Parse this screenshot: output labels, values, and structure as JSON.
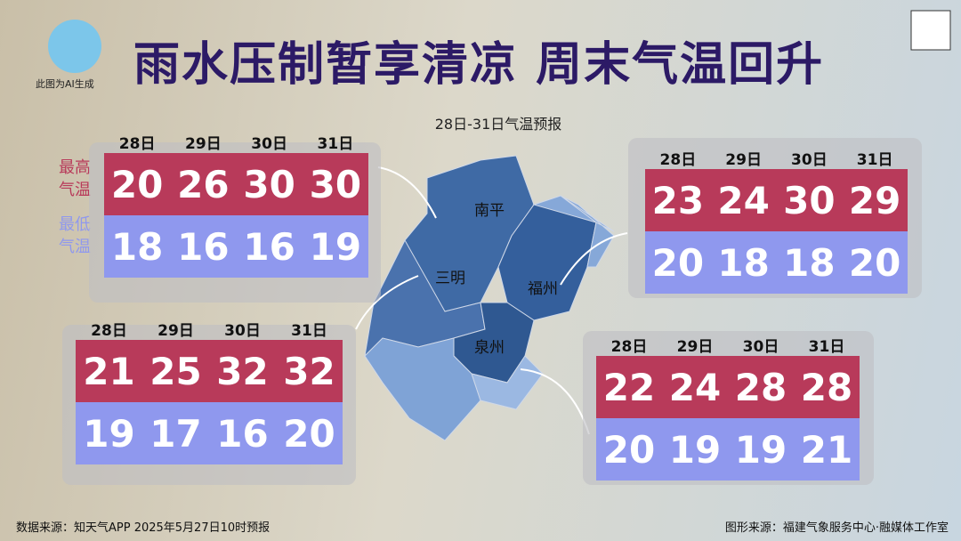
{
  "header": {
    "title": "雨水压制暂享清凉 周末气温回升",
    "ai_note": "此图为AI生成",
    "subtitle": "28日-31日气温预报"
  },
  "legend": {
    "high": "最高气温",
    "low": "最低气温"
  },
  "days": [
    "28日",
    "29日",
    "30日",
    "31日"
  ],
  "map": {
    "cities": [
      "南平",
      "三明",
      "福州",
      "泉州"
    ]
  },
  "panels": [
    {
      "high": [
        20,
        26,
        30,
        30
      ],
      "low": [
        18,
        16,
        16,
        19
      ]
    },
    {
      "high": [
        23,
        24,
        30,
        29
      ],
      "low": [
        20,
        18,
        18,
        20
      ]
    },
    {
      "high": [
        21,
        25,
        32,
        32
      ],
      "low": [
        19,
        17,
        16,
        20
      ]
    },
    {
      "high": [
        22,
        24,
        28,
        28
      ],
      "low": [
        20,
        19,
        19,
        21
      ]
    }
  ],
  "footer": {
    "source": "数据来源：知天气APP  2025年5月27日10时预报",
    "credit": "图形来源：福建气象服务中心·融媒体工作室"
  }
}
